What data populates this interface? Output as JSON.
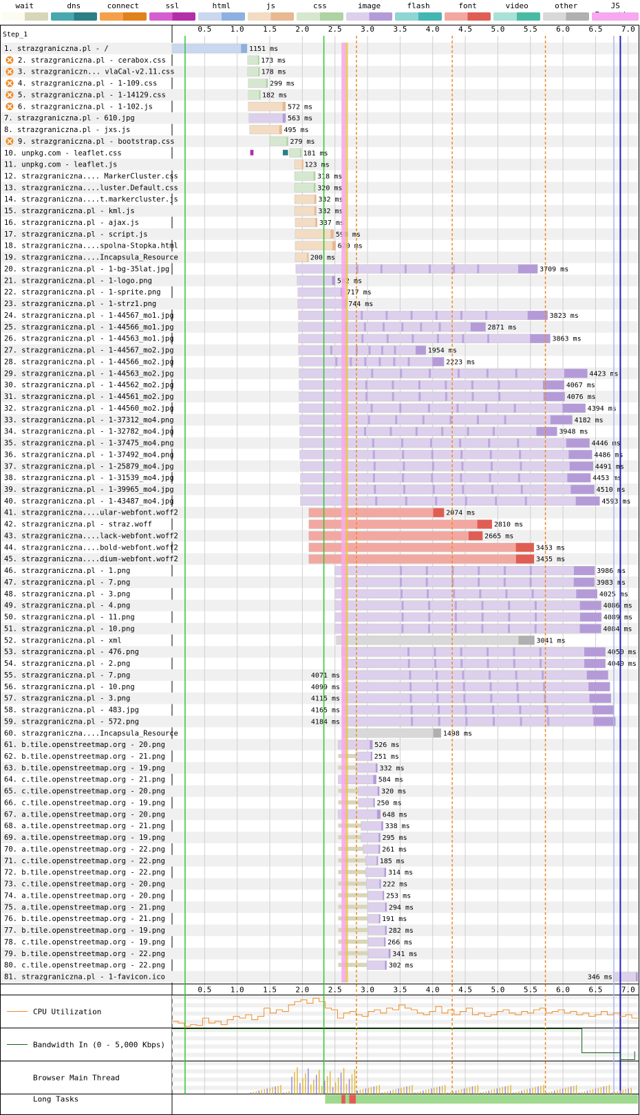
{
  "legend": [
    {
      "label": "wait",
      "light": "#fcfcf0",
      "dark": "#d8d6b8"
    },
    {
      "label": "dns",
      "light": "#48a8ae",
      "dark": "#2b7f86"
    },
    {
      "label": "connect",
      "light": "#f4a04a",
      "dark": "#e0821c"
    },
    {
      "label": "ssl",
      "light": "#d65fcf",
      "dark": "#b42ea8"
    },
    {
      "label": "html",
      "light": "#c9d7ef",
      "dark": "#8eb0e0"
    },
    {
      "label": "js",
      "light": "#f3dcc4",
      "dark": "#e8b890"
    },
    {
      "label": "css",
      "light": "#d5e8cf",
      "dark": "#aed2a2"
    },
    {
      "label": "image",
      "light": "#ddd0ec",
      "dark": "#b49bd8"
    },
    {
      "label": "flash",
      "light": "#8ed5d3",
      "dark": "#42b6b3"
    },
    {
      "label": "font",
      "light": "#f2a8a0",
      "dark": "#e05d54"
    },
    {
      "label": "video",
      "light": "#a8e1d6",
      "dark": "#49bba5"
    },
    {
      "label": "other",
      "light": "#d8d8d8",
      "dark": "#b0b0b0"
    },
    {
      "label": "JS Execution",
      "light": "#f7a8f0",
      "dark": "#f7a8f0"
    }
  ],
  "chart_data": {
    "type": "waterfall",
    "step_label": "Step_1",
    "x_ticks": [
      "0.5",
      "1.0",
      "1.5",
      "2.0",
      "2.5",
      "3.0",
      "3.5",
      "4.0",
      "4.5",
      "5.0",
      "5.5",
      "6.0",
      "6.5",
      "7.0"
    ],
    "x_unit": "seconds",
    "x_range": [
      0,
      7.15
    ],
    "markers": {
      "green_lines": [
        0.2,
        2.33
      ],
      "orange_dashed": [
        2.83,
        4.3,
        5.73
      ],
      "blue_lines": [
        6.78,
        6.88
      ]
    },
    "requests": [
      {
        "label": "1. strazgraniczna.pl - /",
        "type": "html",
        "start": 0.0,
        "ms": "1151 ms",
        "pre": [
          [
            "wait",
            0.0,
            0.15
          ],
          [
            "dns",
            0.15,
            0.17
          ],
          [
            "connect",
            0.17,
            0.25
          ],
          [
            "ssl",
            0.25,
            0.3
          ]
        ]
      },
      {
        "label": "2. strazgraniczna.pl - cerabox.css",
        "type": "css",
        "start": 1.16,
        "ms": "173 ms",
        "warn": true
      },
      {
        "label": "3. strazgraniczn... vlaCal-v2.11.css",
        "type": "css",
        "start": 1.16,
        "ms": "178 ms",
        "warn": true
      },
      {
        "label": "4. strazgraniczna.pl - 1-109.css",
        "type": "css",
        "start": 1.17,
        "ms": "299 ms",
        "warn": true
      },
      {
        "label": "5. strazgraniczna.pl - 1-14129.css",
        "type": "css",
        "start": 1.17,
        "ms": "182 ms",
        "warn": true
      },
      {
        "label": "6. strazgraniczna.pl - 1-102.js",
        "type": "js",
        "start": 1.17,
        "ms": "572 ms",
        "warn": true
      },
      {
        "label": "7. strazgraniczna.pl - 610.jpg",
        "type": "image",
        "start": 1.18,
        "ms": "563 ms"
      },
      {
        "label": "8. strazgraniczna.pl - jxs.js",
        "type": "js",
        "start": 1.19,
        "ms": "495 ms"
      },
      {
        "label": "9. strazgraniczna.pl - bootstrap.css",
        "type": "css",
        "start": 1.5,
        "ms": "279 ms",
        "warn": true
      },
      {
        "label": "10. unpkg.com - leaflet.css",
        "type": "css",
        "start": 1.8,
        "ms": "181 ms",
        "pre": [
          [
            "ssl",
            1.2,
            1.25
          ],
          [
            "dns",
            1.7,
            1.78
          ]
        ]
      },
      {
        "label": "11. unpkg.com - leaflet.js",
        "type": "js",
        "start": 1.88,
        "ms": "123 ms"
      },
      {
        "label": "12. strazgraniczna.... MarkerCluster.css",
        "type": "css",
        "start": 1.88,
        "ms": "318 ms"
      },
      {
        "label": "13. strazgraniczna....luster.Default.css",
        "type": "css",
        "start": 1.88,
        "ms": "320 ms"
      },
      {
        "label": "14. strazgraniczna....t.markercluster.js",
        "type": "js",
        "start": 1.88,
        "ms": "332 ms"
      },
      {
        "label": "15. strazgraniczna.pl - kml.js",
        "type": "js",
        "start": 1.88,
        "ms": "332 ms"
      },
      {
        "label": "16. strazgraniczna.pl - ajax.js",
        "type": "js",
        "start": 1.89,
        "ms": "337 ms"
      },
      {
        "label": "17. strazgraniczna.pl - script.js",
        "type": "js",
        "start": 1.89,
        "ms": "590 ms"
      },
      {
        "label": "18. strazgraniczna....spolna-Stopka.html",
        "type": "js",
        "start": 1.89,
        "ms": "620 ms"
      },
      {
        "label": "19. strazgraniczna....Incapsula_Resource",
        "type": "js",
        "start": 1.89,
        "ms": "200 ms"
      },
      {
        "label": "20. strazgraniczna.pl - 1-bg-35lat.jpg",
        "type": "image",
        "start": 1.9,
        "ms": "3709 ms"
      },
      {
        "label": "21. strazgraniczna.pl - 1-logo.png",
        "type": "image",
        "start": 1.92,
        "ms": "582 ms"
      },
      {
        "label": "22. strazgraniczna.pl - 1-sprite.png",
        "type": "image",
        "start": 1.93,
        "ms": "717 ms"
      },
      {
        "label": "23. strazgraniczna.pl - 1-strz1.png",
        "type": "image",
        "start": 1.93,
        "ms": "744 ms"
      },
      {
        "label": "24. strazgraniczna.pl - 1-44567_mo1.jpg",
        "type": "image",
        "start": 1.94,
        "ms": "3823 ms"
      },
      {
        "label": "25. strazgraniczna.pl - 1-44566_mo1.jpg",
        "type": "image",
        "start": 1.94,
        "ms": "2871 ms"
      },
      {
        "label": "26. strazgraniczna.pl - 1-44563_mo1.jpg",
        "type": "image",
        "start": 1.94,
        "ms": "3863 ms"
      },
      {
        "label": "27. strazgraniczna.pl - 1-44567_mo2.jpg",
        "type": "image",
        "start": 1.94,
        "ms": "1954 ms"
      },
      {
        "label": "28. strazgraniczna.pl - 1-44566_mo2.jpg",
        "type": "image",
        "start": 1.95,
        "ms": "2223 ms"
      },
      {
        "label": "29. strazgraniczna.pl - 1-44563_mo2.jpg",
        "type": "image",
        "start": 1.95,
        "ms": "4423 ms"
      },
      {
        "label": "30. strazgraniczna.pl - 1-44562_mo2.jpg",
        "type": "image",
        "start": 1.95,
        "ms": "4067 ms"
      },
      {
        "label": "31. strazgraniczna.pl - 1-44561_mo2.jpg",
        "type": "image",
        "start": 1.95,
        "ms": "4076 ms"
      },
      {
        "label": "32. strazgraniczna.pl - 1-44560_mo2.jpg",
        "type": "image",
        "start": 1.95,
        "ms": "4394 ms"
      },
      {
        "label": "33. strazgraniczna.pl - 1-37312_mo4.png",
        "type": "image",
        "start": 1.96,
        "ms": "4182 ms"
      },
      {
        "label": "34. strazgraniczna.pl - 1-32782_mo4.jpg",
        "type": "image",
        "start": 1.96,
        "ms": "3948 ms"
      },
      {
        "label": "35. strazgraniczna.pl - 1-37475_mo4.png",
        "type": "image",
        "start": 1.96,
        "ms": "4446 ms"
      },
      {
        "label": "36. strazgraniczna.pl - 1-37492_mo4.png",
        "type": "image",
        "start": 1.96,
        "ms": "4486 ms"
      },
      {
        "label": "37. strazgraniczna.pl - 1-25879_mo4.jpg",
        "type": "image",
        "start": 1.97,
        "ms": "4491 ms"
      },
      {
        "label": "38. strazgraniczna.pl - 1-31539_mo4.jpg",
        "type": "image",
        "start": 1.97,
        "ms": "4453 ms"
      },
      {
        "label": "39. strazgraniczna.pl - 1-39965_mo4.jpg",
        "type": "image",
        "start": 1.97,
        "ms": "4510 ms"
      },
      {
        "label": "40. strazgraniczna.pl - 1-43487_mo4.jpg",
        "type": "image",
        "start": 1.97,
        "ms": "4593 ms"
      },
      {
        "label": "41. strazgraniczna....ular-webfont.woff2",
        "type": "font",
        "start": 2.1,
        "ms": "2074 ms"
      },
      {
        "label": "42. strazgraniczna.pl - straz.woff",
        "type": "font",
        "start": 2.1,
        "ms": "2810 ms"
      },
      {
        "label": "43. strazgraniczna....lack-webfont.woff2",
        "type": "font",
        "start": 2.1,
        "ms": "2665 ms"
      },
      {
        "label": "44. strazgraniczna....bold-webfont.woff2",
        "type": "font",
        "start": 2.1,
        "ms": "3453 ms"
      },
      {
        "label": "45. strazgraniczna....dium-webfont.woff2",
        "type": "font",
        "start": 2.1,
        "ms": "3455 ms"
      },
      {
        "label": "46. strazgraniczna.pl - 1.png",
        "type": "image",
        "start": 2.5,
        "ms": "3986 ms"
      },
      {
        "label": "47. strazgraniczna.pl - 7.png",
        "type": "image",
        "start": 2.5,
        "ms": "3983 ms"
      },
      {
        "label": "48. strazgraniczna.pl - 3.png",
        "type": "image",
        "start": 2.5,
        "ms": "4025 ms"
      },
      {
        "label": "49. strazgraniczna.pl - 4.png",
        "type": "image",
        "start": 2.5,
        "ms": "4086 ms"
      },
      {
        "label": "50. strazgraniczna.pl - 11.png",
        "type": "image",
        "start": 2.5,
        "ms": "4089 ms"
      },
      {
        "label": "51. strazgraniczna.pl - 10.png",
        "type": "image",
        "start": 2.5,
        "ms": "4084 ms"
      },
      {
        "label": "52. strazgraniczna.pl - xml",
        "type": "other",
        "start": 2.52,
        "ms": "3041 ms"
      },
      {
        "label": "53. strazgraniczna.pl - 476.png",
        "type": "image",
        "start": 2.6,
        "ms": "4050 ms"
      },
      {
        "label": "54. strazgraniczna.pl - 2.png",
        "type": "image",
        "start": 2.61,
        "ms": "4040 ms"
      },
      {
        "label": "55. strazgraniczna.pl - 7.png",
        "type": "image",
        "start": 2.62,
        "ms": "4071 ms",
        "label_left": true
      },
      {
        "label": "56. strazgraniczna.pl - 10.png",
        "type": "image",
        "start": 2.62,
        "ms": "4099 ms",
        "label_left": true
      },
      {
        "label": "57. strazgraniczna.pl - 3.png",
        "type": "image",
        "start": 2.62,
        "ms": "4115 ms",
        "label_left": true
      },
      {
        "label": "58. strazgraniczna.pl - 483.jpg",
        "type": "image",
        "start": 2.62,
        "ms": "4165 ms",
        "label_left": true
      },
      {
        "label": "59. strazgraniczna.pl - 572.png",
        "type": "image",
        "start": 2.62,
        "ms": "4184 ms",
        "label_left": true
      },
      {
        "label": "60. strazgraniczna....Incapsula_Resource",
        "type": "other",
        "start": 2.63,
        "ms": "1498 ms"
      },
      {
        "label": "61. b.tile.openstreetmap.org - 20.png",
        "type": "image",
        "start": 2.55,
        "ms": "526 ms",
        "pre": [
          [
            "dns",
            2.55,
            2.82
          ],
          [
            "ssl",
            2.82,
            2.86
          ]
        ]
      },
      {
        "label": "62. b.tile.openstreetmap.org - 21.png",
        "type": "image",
        "start": 2.82,
        "ms": "251 ms",
        "pre": [
          [
            "wait",
            2.55,
            2.82
          ]
        ]
      },
      {
        "label": "63. b.tile.openstreetmap.org - 19.png",
        "type": "image",
        "start": 2.82,
        "ms": "332 ms",
        "pre": [
          [
            "wait",
            2.55,
            2.82
          ]
        ]
      },
      {
        "label": "64. c.tile.openstreetmap.org - 21.png",
        "type": "image",
        "start": 2.55,
        "ms": "584 ms",
        "pre": [
          [
            "dns",
            2.55,
            2.8
          ],
          [
            "ssl",
            2.8,
            2.85
          ]
        ]
      },
      {
        "label": "65. c.tile.openstreetmap.org - 20.png",
        "type": "image",
        "start": 2.86,
        "ms": "320 ms",
        "pre": [
          [
            "wait",
            2.55,
            2.86
          ]
        ]
      },
      {
        "label": "66. c.tile.openstreetmap.org - 19.png",
        "type": "image",
        "start": 2.86,
        "ms": "250 ms",
        "pre": [
          [
            "wait",
            2.55,
            2.86
          ]
        ]
      },
      {
        "label": "67. a.tile.openstreetmap.org - 20.png",
        "type": "image",
        "start": 2.55,
        "ms": "648 ms",
        "pre": [
          [
            "dns",
            2.55,
            2.82
          ],
          [
            "connect",
            2.82,
            2.86
          ],
          [
            "ssl",
            2.86,
            2.9
          ]
        ]
      },
      {
        "label": "68. a.tile.openstreetmap.org - 21.png",
        "type": "image",
        "start": 2.9,
        "ms": "338 ms",
        "pre": [
          [
            "wait",
            2.55,
            2.9
          ]
        ]
      },
      {
        "label": "69. a.tile.openstreetmap.org - 19.png",
        "type": "image",
        "start": 2.9,
        "ms": "295 ms",
        "pre": [
          [
            "wait",
            2.55,
            2.9
          ]
        ]
      },
      {
        "label": "70. a.tile.openstreetmap.org - 22.png",
        "type": "image",
        "start": 2.93,
        "ms": "261 ms",
        "pre": [
          [
            "wait",
            2.55,
            2.93
          ]
        ]
      },
      {
        "label": "71. c.tile.openstreetmap.org - 22.png",
        "type": "image",
        "start": 2.97,
        "ms": "185 ms",
        "pre": [
          [
            "wait",
            2.55,
            2.97
          ]
        ]
      },
      {
        "label": "72. b.tile.openstreetmap.org - 22.png",
        "type": "image",
        "start": 2.97,
        "ms": "314 ms",
        "pre": [
          [
            "wait",
            2.55,
            2.97
          ]
        ]
      },
      {
        "label": "73. c.tile.openstreetmap.org - 20.png",
        "type": "image",
        "start": 2.98,
        "ms": "222 ms",
        "pre": [
          [
            "wait",
            2.55,
            2.98
          ]
        ]
      },
      {
        "label": "74. a.tile.openstreetmap.org - 20.png",
        "type": "image",
        "start": 3.0,
        "ms": "253 ms",
        "pre": [
          [
            "wait",
            2.55,
            3.0
          ]
        ]
      },
      {
        "label": "75. a.tile.openstreetmap.org - 21.png",
        "type": "image",
        "start": 3.0,
        "ms": "294 ms",
        "pre": [
          [
            "wait",
            2.55,
            3.0
          ]
        ]
      },
      {
        "label": "76. b.tile.openstreetmap.org - 21.png",
        "type": "image",
        "start": 3.0,
        "ms": "191 ms",
        "pre": [
          [
            "wait",
            2.55,
            3.0
          ]
        ]
      },
      {
        "label": "77. b.tile.openstreetmap.org - 19.png",
        "type": "image",
        "start": 3.01,
        "ms": "282 ms",
        "pre": [
          [
            "wait",
            2.55,
            3.01
          ]
        ]
      },
      {
        "label": "78. c.tile.openstreetmap.org - 19.png",
        "type": "image",
        "start": 3.01,
        "ms": "266 ms",
        "pre": [
          [
            "wait",
            2.55,
            3.01
          ]
        ]
      },
      {
        "label": "79. b.tile.openstreetmap.org - 22.png",
        "type": "image",
        "start": 3.01,
        "ms": "341 ms",
        "pre": [
          [
            "wait",
            2.55,
            3.01
          ]
        ]
      },
      {
        "label": "80. c.tile.openstreetmap.org - 22.png",
        "type": "image",
        "start": 2.99,
        "ms": "302 ms",
        "pre": [
          [
            "wait",
            2.55,
            2.99
          ]
        ]
      },
      {
        "label": "81. strazgraniczna.pl - 1-favicon.ico",
        "type": "image",
        "start": 6.8,
        "ms": "346 ms",
        "label_left": true
      }
    ],
    "cpu_label": "CPU Utilization",
    "cpu_values": [
      20,
      15,
      5,
      10,
      8,
      30,
      15,
      20,
      10,
      25,
      35,
      30,
      40,
      25,
      35,
      60,
      45,
      55,
      50,
      70,
      80,
      85,
      75,
      90,
      80,
      60,
      55,
      30,
      45,
      50,
      40,
      35,
      50,
      55,
      45,
      60,
      55,
      70,
      60,
      55,
      45,
      40,
      50,
      65,
      45,
      55,
      40,
      50,
      60,
      40,
      45,
      35,
      40,
      50,
      55,
      45,
      40,
      50,
      45,
      55,
      60,
      45,
      50,
      55,
      45,
      50,
      40,
      45,
      35,
      40,
      50,
      40,
      45,
      35,
      40,
      30
    ],
    "bandwidth_label": "Bandwidth In (0 - 5,000 Kbps)",
    "main_thread_label": "Browser Main Thread",
    "long_tasks_label": "Long Tasks",
    "long_tasks": [
      {
        "start": 2.35,
        "end": 7.15,
        "color": "#9fd88f"
      },
      {
        "start": 2.6,
        "end": 2.66,
        "color": "#e05d54"
      },
      {
        "start": 2.72,
        "end": 2.82,
        "color": "#e05d54"
      }
    ]
  }
}
